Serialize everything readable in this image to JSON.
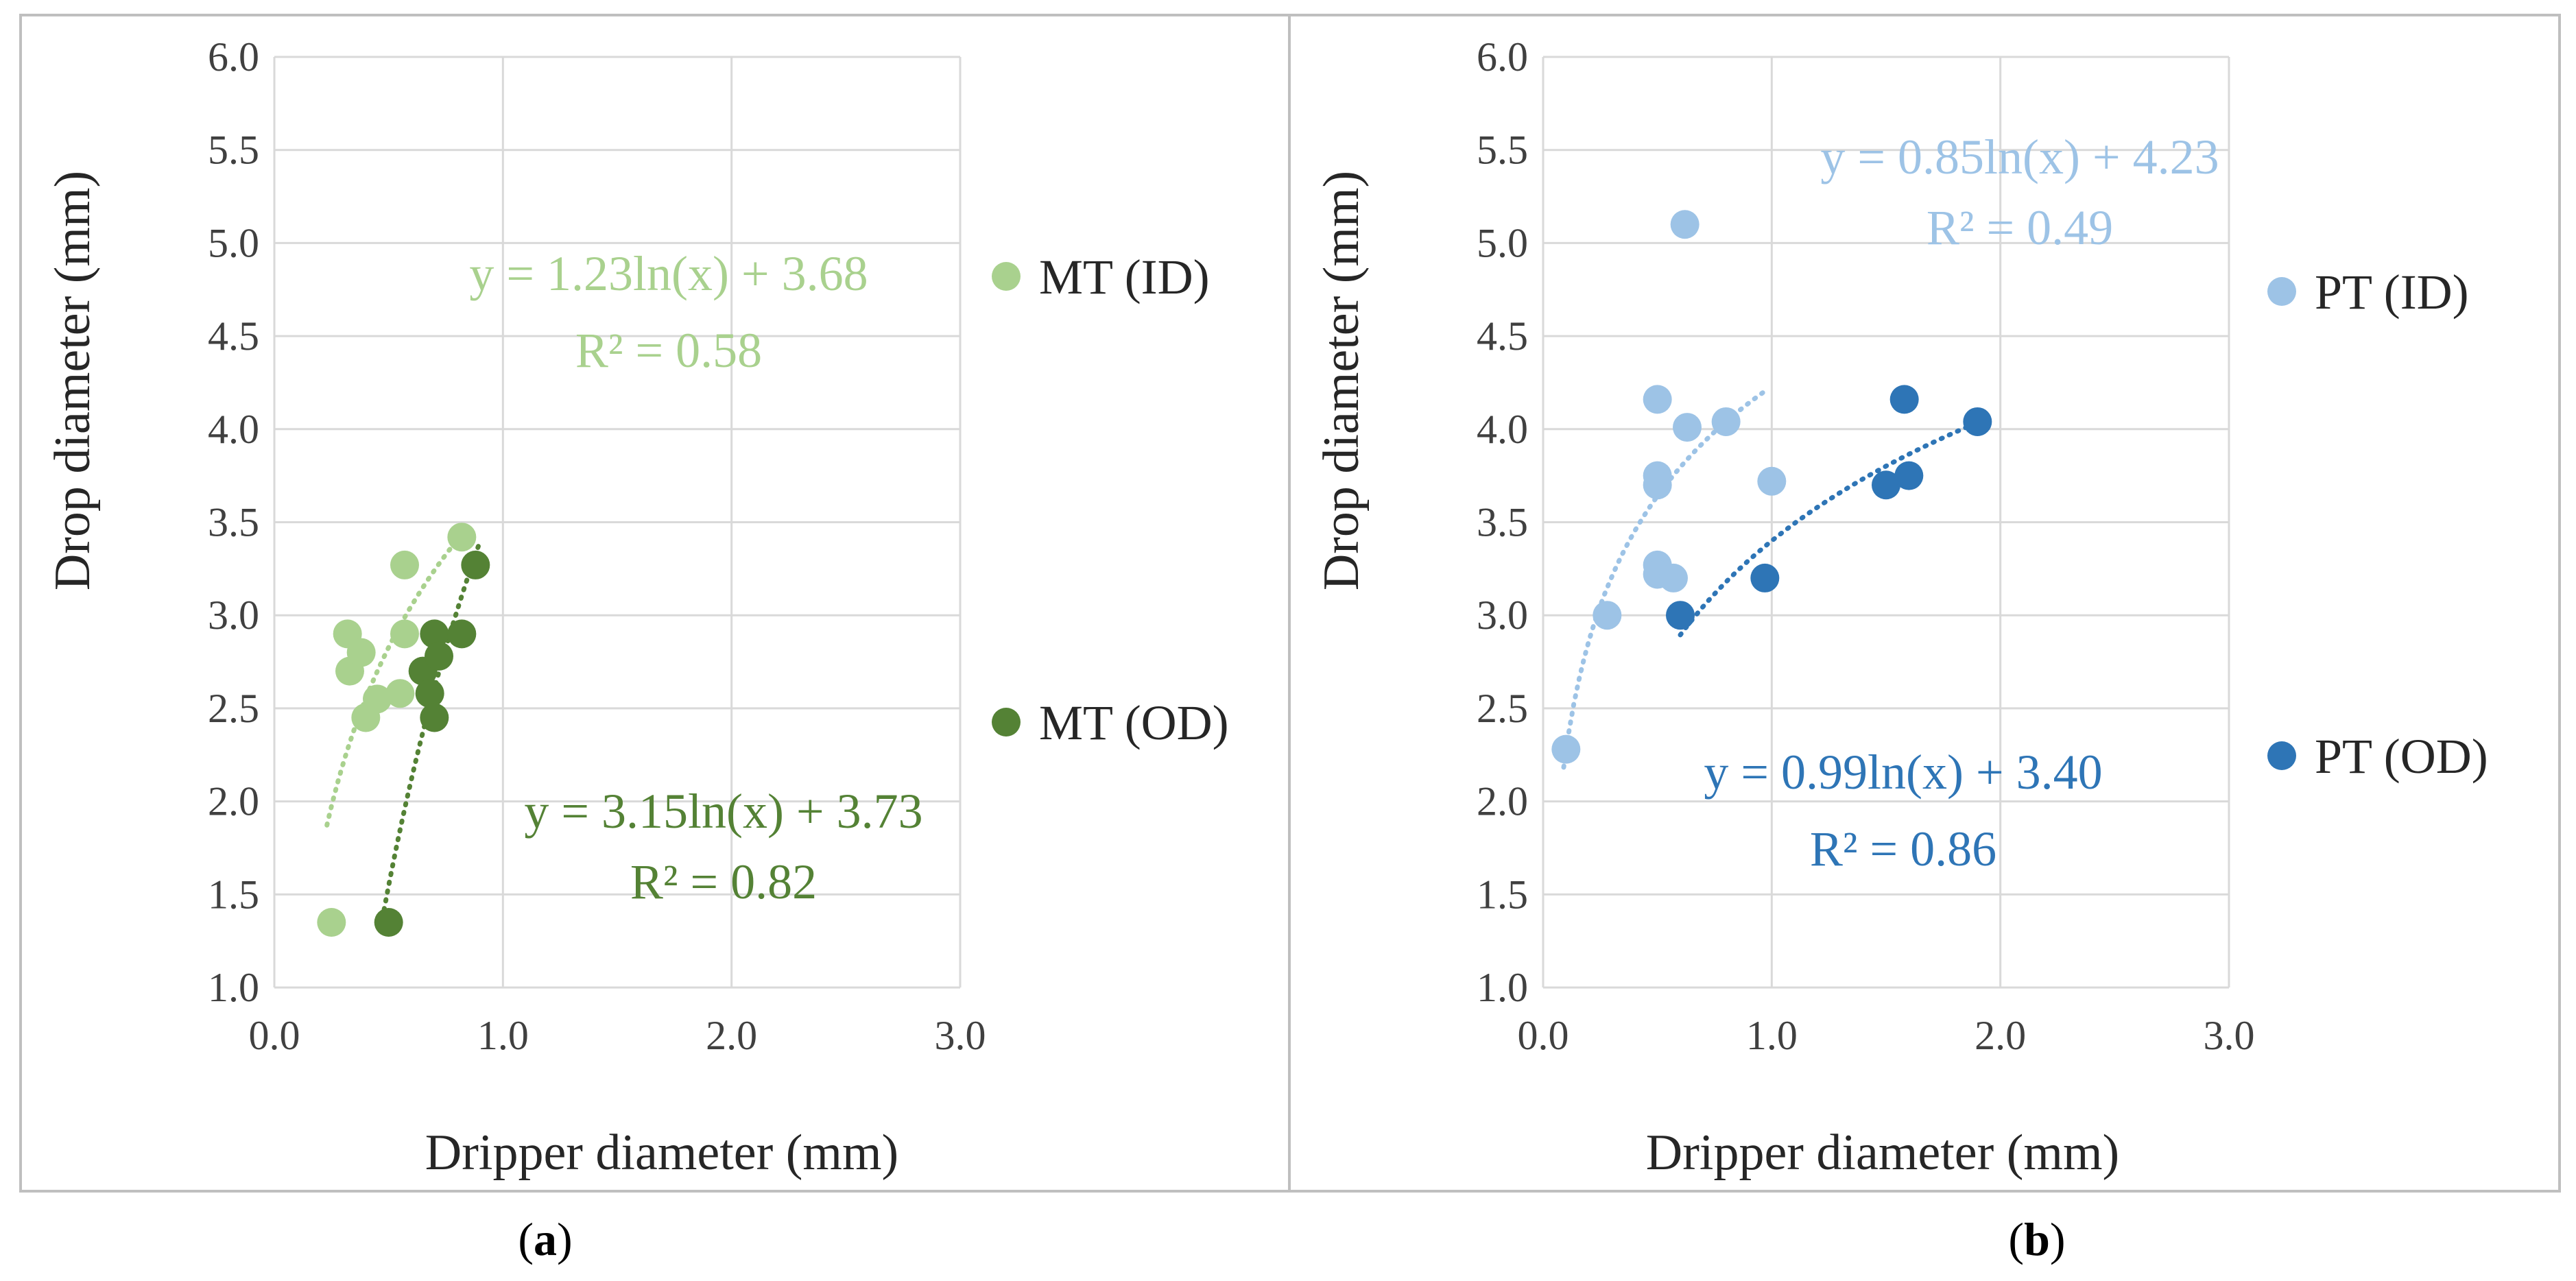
{
  "chart_data": [
    {
      "type": "scatter",
      "panel_label": "a",
      "xlabel": "Dripper diameter (mm)",
      "ylabel": "Drop diameter (mm)",
      "xlim": [
        0,
        3
      ],
      "ylim": [
        1,
        6
      ],
      "x_tick_labels": [
        "0.0",
        "1.0",
        "2.0",
        "3.0"
      ],
      "y_tick_labels": [
        "1.0",
        "1.5",
        "2.0",
        "2.5",
        "3.0",
        "3.5",
        "4.0",
        "4.5",
        "5.0",
        "5.5",
        "6.0"
      ],
      "grid": true,
      "legend_position": "right",
      "series": [
        {
          "name": "MT (ID)",
          "color": "#a9d18e",
          "points": [
            [
              0.25,
              1.35
            ],
            [
              0.32,
              2.9
            ],
            [
              0.33,
              2.7
            ],
            [
              0.38,
              2.8
            ],
            [
              0.4,
              2.45
            ],
            [
              0.45,
              2.55
            ],
            [
              0.55,
              2.58
            ],
            [
              0.57,
              2.9
            ],
            [
              0.57,
              3.27
            ],
            [
              0.82,
              3.42
            ]
          ],
          "trendline": {
            "kind": "log",
            "a": 1.23,
            "b": 3.68,
            "x_range": [
              0.23,
              0.86
            ]
          },
          "equation": "y = 1.23ln(x) + 3.68",
          "r2": "R² = 0.58"
        },
        {
          "name": "MT (OD)",
          "color": "#548235",
          "points": [
            [
              0.5,
              1.35
            ],
            [
              0.65,
              2.7
            ],
            [
              0.68,
              2.58
            ],
            [
              0.7,
              2.9
            ],
            [
              0.7,
              2.45
            ],
            [
              0.72,
              2.78
            ],
            [
              0.82,
              2.9
            ],
            [
              0.88,
              3.27
            ]
          ],
          "trendline": {
            "kind": "log",
            "a": 3.15,
            "b": 3.73,
            "x_range": [
              0.48,
              0.9
            ]
          },
          "equation": "y = 3.15ln(x) + 3.73",
          "r2": "R² = 0.82"
        }
      ]
    },
    {
      "type": "scatter",
      "panel_label": "b",
      "xlabel": "Dripper diameter (mm)",
      "ylabel": "Drop diameter (mm)",
      "xlim": [
        0,
        3
      ],
      "ylim": [
        1,
        6
      ],
      "x_tick_labels": [
        "0.0",
        "1.0",
        "2.0",
        "3.0"
      ],
      "y_tick_labels": [
        "1.0",
        "1.5",
        "2.0",
        "2.5",
        "3.0",
        "3.5",
        "4.0",
        "4.5",
        "5.0",
        "5.5",
        "6.0"
      ],
      "grid": true,
      "legend_position": "right",
      "series": [
        {
          "name": "PT (ID)",
          "color": "#9dc3e6",
          "points": [
            [
              0.1,
              2.28
            ],
            [
              0.28,
              3.0
            ],
            [
              0.5,
              4.16
            ],
            [
              0.5,
              3.75
            ],
            [
              0.5,
              3.7
            ],
            [
              0.5,
              3.27
            ],
            [
              0.5,
              3.22
            ],
            [
              0.57,
              3.2
            ],
            [
              0.62,
              5.1
            ],
            [
              0.63,
              4.01
            ],
            [
              0.8,
              4.04
            ],
            [
              1.0,
              3.72
            ]
          ],
          "trendline": {
            "kind": "log",
            "a": 0.85,
            "b": 4.23,
            "x_range": [
              0.09,
              0.98
            ]
          },
          "equation": "y = 0.85ln(x) + 4.23",
          "r2": "R² = 0.49"
        },
        {
          "name": "PT (OD)",
          "color": "#2e75b6",
          "points": [
            [
              0.6,
              3.0
            ],
            [
              0.97,
              3.2
            ],
            [
              1.5,
              3.7
            ],
            [
              1.58,
              4.16
            ],
            [
              1.6,
              3.75
            ],
            [
              1.9,
              4.04
            ]
          ],
          "trendline": {
            "kind": "log",
            "a": 0.99,
            "b": 3.4,
            "x_range": [
              0.6,
              1.9
            ]
          },
          "equation": "y = 0.99ln(x) + 3.40",
          "r2": "R² = 0.86"
        }
      ]
    }
  ]
}
